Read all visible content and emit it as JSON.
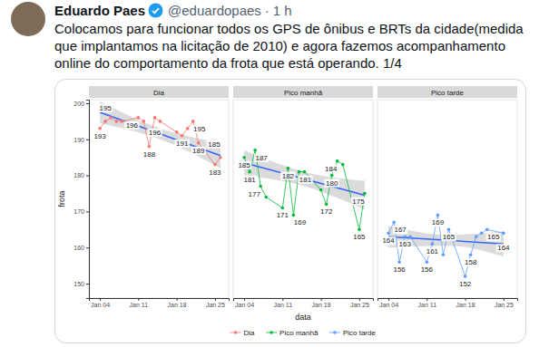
{
  "tweet": {
    "author": "Eduardo Paes",
    "handle": "@eduardopaes",
    "separator": "·",
    "time": "1 h",
    "text": "Colocamos para funcionar todos os GPS de ônibus e BRTs da cidade(medida que implantamos na licitação de 2010) e agora fazemos acompanhamento online do comportamento da frota que está operando. 1/4"
  },
  "chart_data": {
    "type": "line",
    "xlabel": "data",
    "ylabel": "frota",
    "x": [
      4,
      5,
      6,
      7,
      8,
      11,
      12,
      13,
      14,
      15,
      18,
      19,
      20,
      21,
      22,
      25,
      26
    ],
    "xlim": [
      2,
      27.5
    ],
    "xticks": [
      {
        "value": 4,
        "label": "Jan 04"
      },
      {
        "value": 11,
        "label": "Jan 11"
      },
      {
        "value": 18,
        "label": "Jan 18"
      },
      {
        "value": 25,
        "label": "Jan 25"
      }
    ],
    "ylim": [
      146,
      201
    ],
    "yticks": [
      150,
      160,
      170,
      180,
      190,
      200
    ],
    "grid": false,
    "legend": "bottom",
    "data_labels": true,
    "series": [
      {
        "name": "Dia",
        "color": "#f8766d",
        "marker": "circle",
        "line_style": "solid",
        "values": [
          193,
          195,
          196,
          195,
          195,
          196,
          195,
          188,
          196,
          195,
          192,
          191,
          193,
          195,
          189,
          183,
          185
        ],
        "value_labels": [
          "193",
          "195",
          null,
          null,
          null,
          "196",
          null,
          "188",
          "196",
          null,
          null,
          "191",
          null,
          "195",
          "189",
          "183",
          "185"
        ],
        "trend": {
          "x": [
            4,
            15,
            26
          ],
          "values": [
            197.5,
            191.5,
            185.5
          ],
          "lower": [
            194.5,
            190,
            182
          ],
          "upper": [
            200.5,
            193,
            189
          ],
          "color": "#3366ff"
        }
      },
      {
        "name": "Pico manhã",
        "color": "#00ba38",
        "marker": "circle",
        "line_style": "solid",
        "values": [
          185,
          181,
          187,
          177,
          174,
          171,
          182,
          169,
          181,
          181,
          176,
          172,
          180,
          184,
          183,
          165,
          175
        ],
        "value_labels": [
          "185",
          "181",
          "187",
          "177",
          null,
          "171",
          "182",
          "169",
          "181",
          null,
          null,
          "172",
          "180",
          "184",
          null,
          "165",
          "175"
        ],
        "trend": {
          "x": [
            4,
            15,
            26
          ],
          "values": [
            183.5,
            179,
            174.5
          ],
          "lower": [
            180,
            177,
            170.5
          ],
          "upper": [
            187,
            181,
            178.5
          ],
          "color": "#3366ff"
        }
      },
      {
        "name": "Pico tarde",
        "color": "#619cff",
        "marker": "circle",
        "line_style": "solid",
        "values": [
          164,
          167,
          156,
          163,
          163,
          156,
          161,
          169,
          158,
          165,
          152,
          158,
          163,
          164,
          165,
          164,
          null
        ],
        "value_labels": [
          "164",
          "167",
          "156",
          "163",
          null,
          "156",
          "161",
          "169",
          null,
          "165",
          "152",
          "158",
          null,
          null,
          "165",
          "164",
          null
        ],
        "trend": {
          "x": [
            4,
            15,
            25
          ],
          "values": [
            163,
            162,
            161
          ],
          "lower": [
            160,
            160.5,
            157.5
          ],
          "upper": [
            166,
            163.5,
            164.5
          ],
          "color": "#3366ff"
        }
      }
    ]
  }
}
